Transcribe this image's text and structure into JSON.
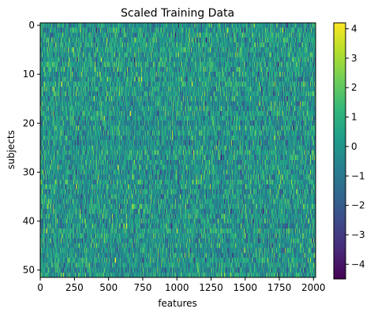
{
  "chart_data": {
    "type": "heatmap",
    "title": "Scaled Training Data",
    "xlabel": "features",
    "ylabel": "subjects",
    "n_rows": 52,
    "n_cols": 2016,
    "x_ticks": [
      0,
      250,
      500,
      750,
      1000,
      1250,
      1500,
      1750,
      2000
    ],
    "x_tick_labels": [
      "0",
      "250",
      "500",
      "750",
      "1000",
      "1250",
      "1500",
      "1750",
      "2000"
    ],
    "y_ticks": [
      0,
      10,
      20,
      30,
      40,
      50
    ],
    "y_tick_labels": [
      "0",
      "10",
      "20",
      "30",
      "40",
      "50"
    ],
    "colorbar": {
      "vmin": -4.5,
      "vmax": 4.2,
      "ticks": [
        4,
        3,
        2,
        1,
        0,
        -1,
        -2,
        -3,
        -4
      ],
      "tick_labels": [
        "4",
        "3",
        "2",
        "1",
        "0",
        "−1",
        "−2",
        "−3",
        "−4"
      ],
      "colormap": "viridis",
      "colors": [
        "#440154",
        "#482878",
        "#3e4989",
        "#31688e",
        "#26828e",
        "#1f9e89",
        "#35b779",
        "#6ece58",
        "#b5de2b",
        "#fde725"
      ]
    },
    "values_note": "approximately standard-normal values (mean 0, sd 1) per cell"
  }
}
